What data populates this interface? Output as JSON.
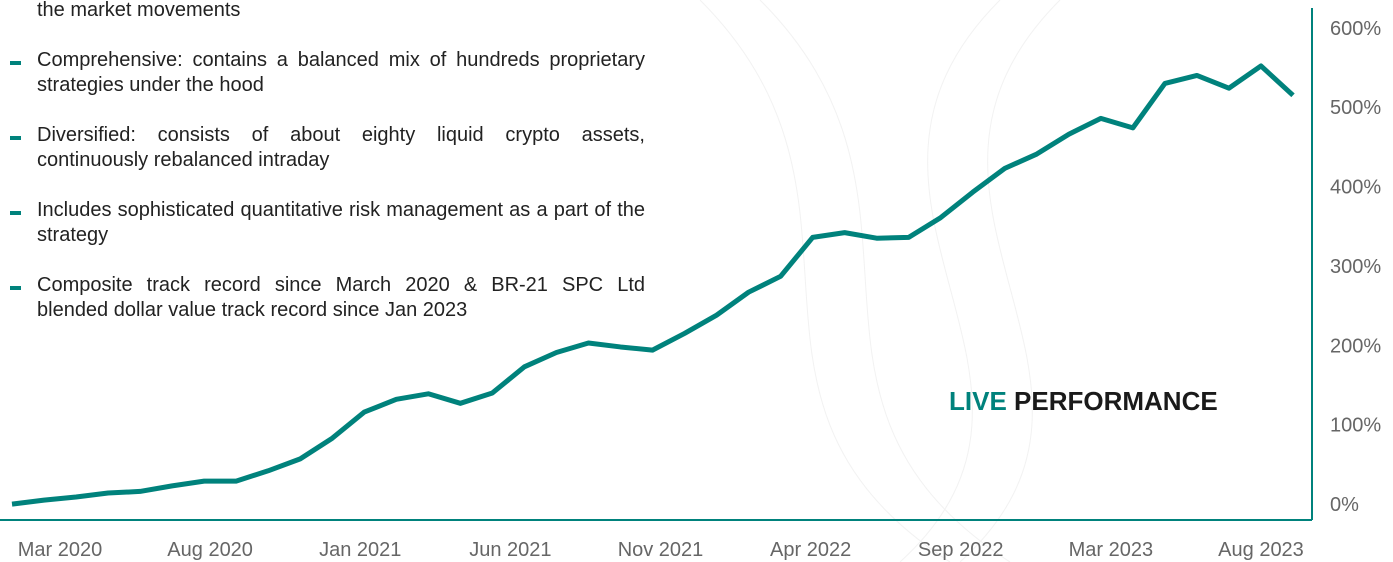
{
  "bullets": [
    "the market movements",
    "Comprehensive: contains a balanced mix of hundreds proprietary strategies under the hood",
    "Diversified: consists of about eighty liquid crypto assets, continuously rebalanced intraday",
    "Includes sophisticated quantitative risk management as a part of the strategy",
    "Composite track record since March 2020 & BR-21 SPC Ltd blended dollar value track record since Jan 2023"
  ],
  "chart_data": {
    "type": "line",
    "title_highlight": "LIVE",
    "title": "PERFORMANCE",
    "color": "#00827c",
    "xtick_labels": [
      "Mar 2020",
      "Aug 2020",
      "Jan 2021",
      "Jun 2021",
      "Nov 2021",
      "Apr 2022",
      "Sep 2022",
      "Mar 2023",
      "Aug 2023"
    ],
    "values": [
      0,
      5,
      9,
      14,
      16,
      23,
      29,
      29,
      42,
      57,
      83,
      116,
      132,
      139,
      127,
      140,
      173,
      191,
      203,
      198,
      194,
      215,
      238,
      267,
      287,
      336,
      342,
      335,
      336,
      361,
      393,
      423,
      441,
      466,
      486,
      474,
      530,
      540,
      524,
      552,
      515
    ],
    "ylim": [
      -20,
      625
    ],
    "yticks": [
      {
        "value": 0,
        "label": "0%"
      },
      {
        "value": 100,
        "label": "100%"
      },
      {
        "value": 200,
        "label": "200%"
      },
      {
        "value": 300,
        "label": "300%"
      },
      {
        "value": 400,
        "label": "400%"
      },
      {
        "value": 500,
        "label": "500%"
      },
      {
        "value": 600,
        "label": "600%"
      }
    ]
  }
}
